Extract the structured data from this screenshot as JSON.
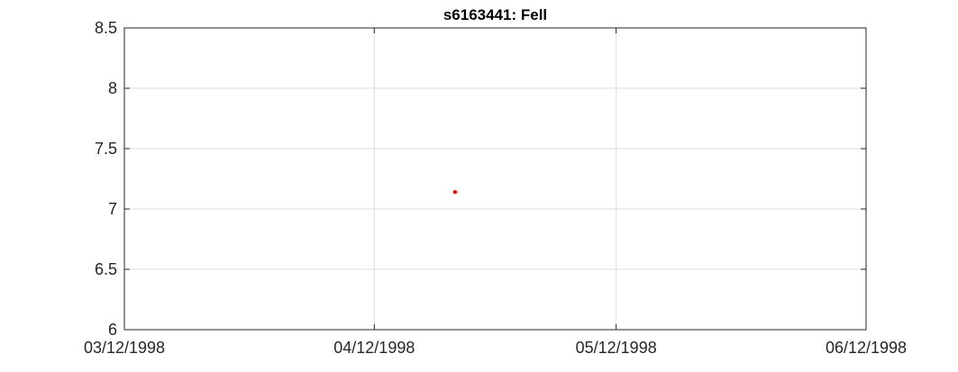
{
  "chart_data": {
    "type": "scatter",
    "title": "s6163441: Fell",
    "xlabel": "",
    "ylabel": "",
    "x_axis_type": "date",
    "xlim": [
      "1998-03-12",
      "1998-06-12"
    ],
    "ylim": [
      6,
      8.5
    ],
    "x_ticks": [
      "1998-03-12",
      "1998-04-12",
      "1998-05-12",
      "1998-06-12"
    ],
    "x_tick_labels": [
      "03/12/1998",
      "04/12/1998",
      "05/12/1998",
      "06/12/1998"
    ],
    "y_ticks": [
      6,
      6.5,
      7,
      7.5,
      8,
      8.5
    ],
    "y_tick_labels": [
      "6",
      "6.5",
      "7",
      "7.5",
      "8",
      "8.5"
    ],
    "grid": true,
    "series": [
      {
        "color": "#ff0000",
        "points": [
          {
            "x": "1998-04-22",
            "y": 7.14
          }
        ]
      }
    ]
  }
}
